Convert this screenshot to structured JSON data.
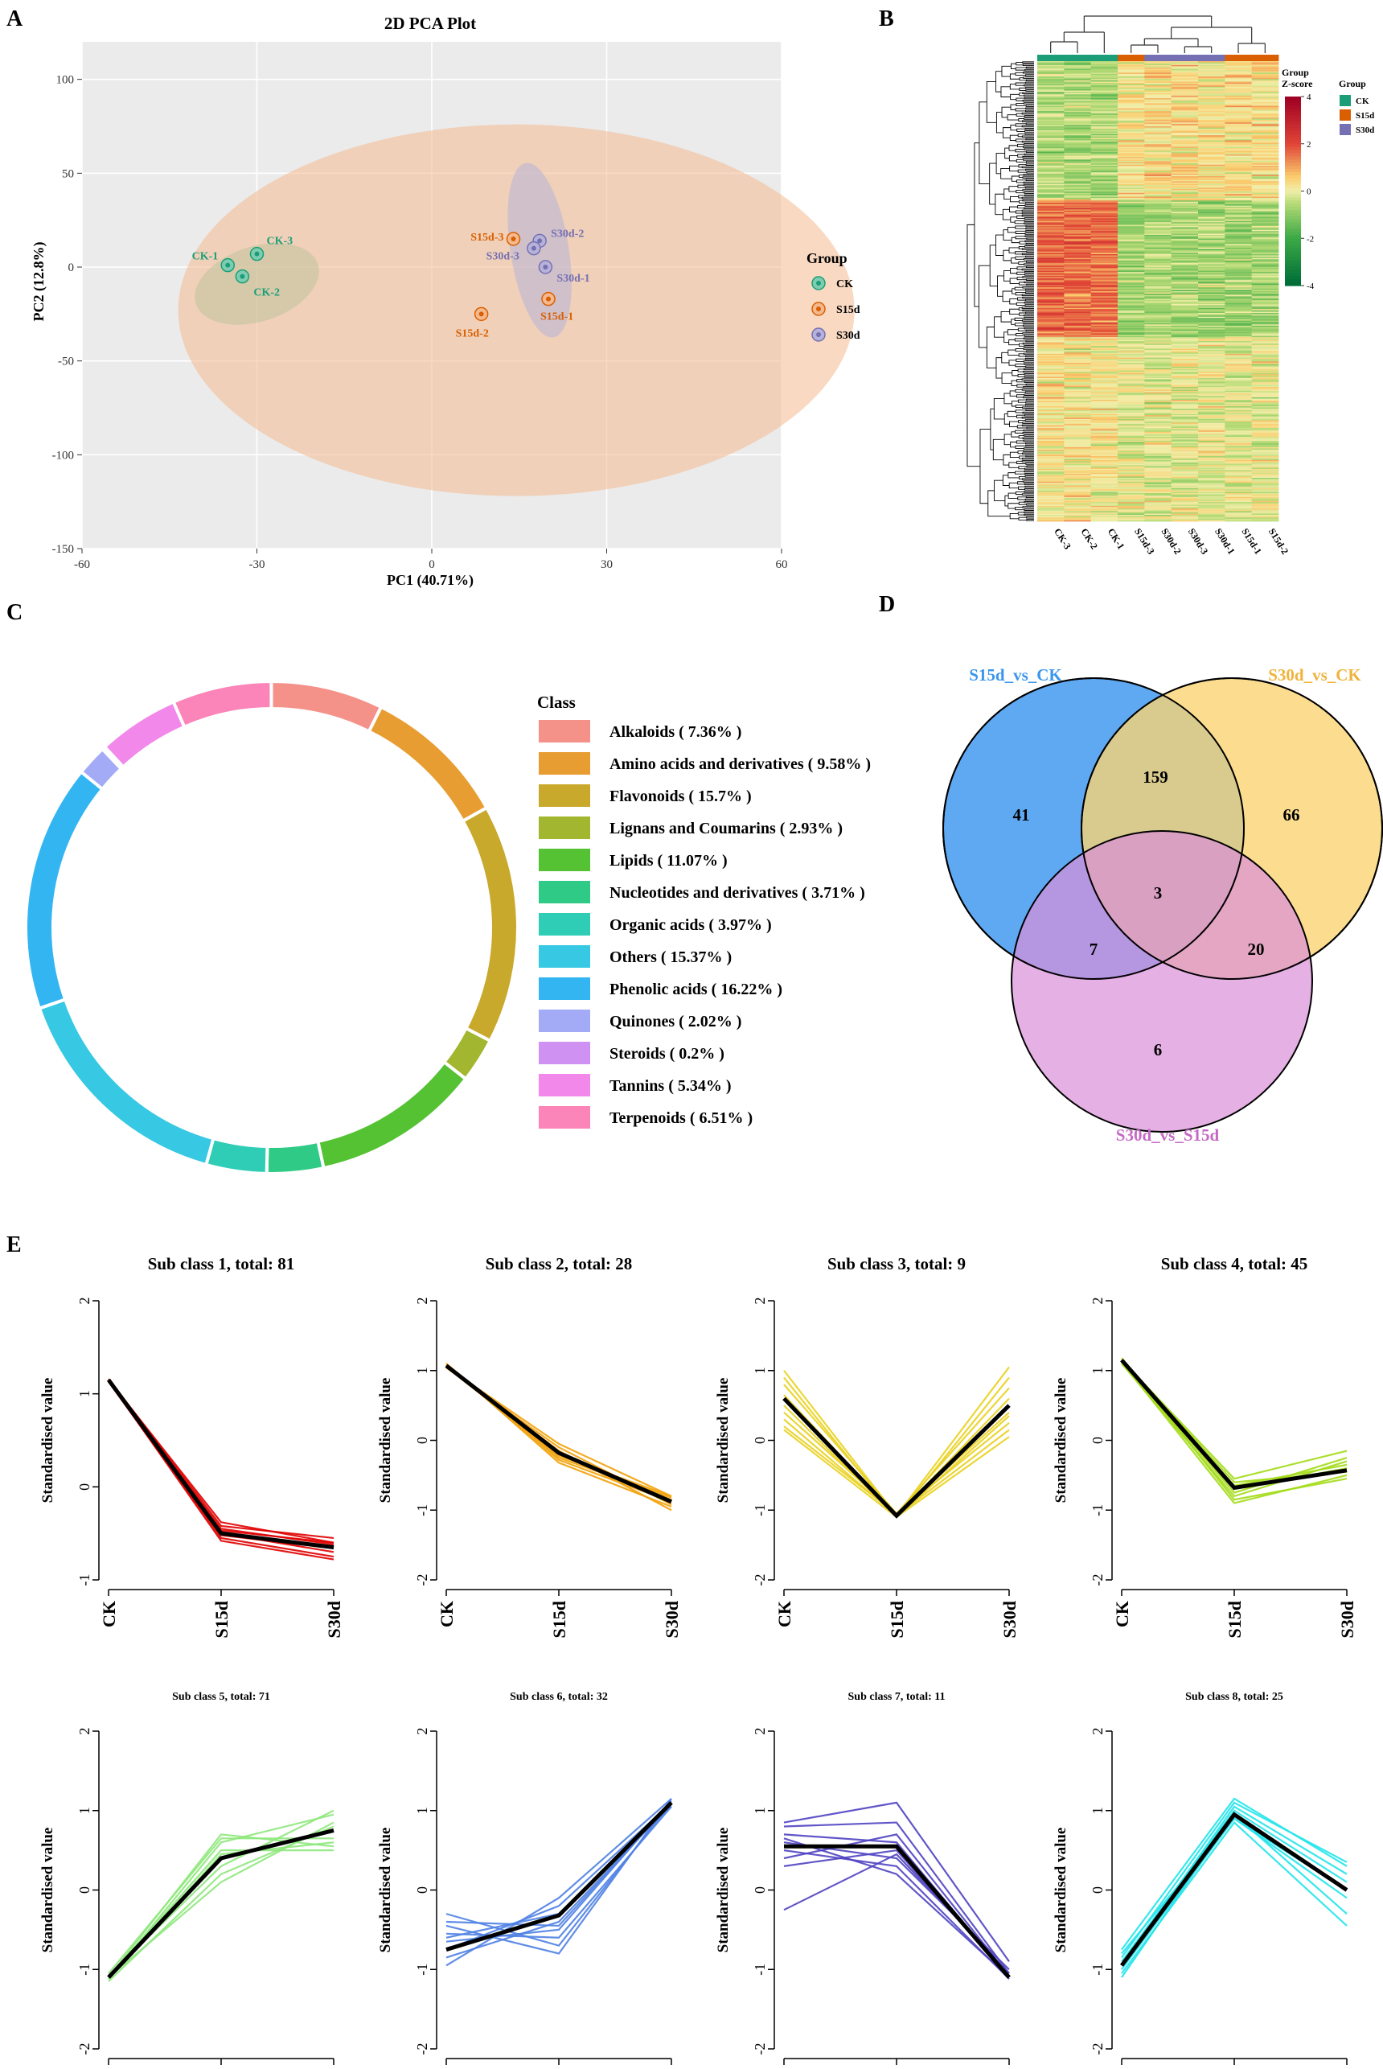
{
  "panel_labels": {
    "A": "A",
    "B": "B",
    "C": "C",
    "D": "D",
    "E": "E"
  },
  "chart_data": [
    {
      "panel": "A",
      "type": "scatter",
      "title": "2D PCA Plot",
      "xlabel": "PC1 (40.71%)",
      "ylabel": "PC2 (12.8%)",
      "xlim": [
        -60,
        60
      ],
      "ylim": [
        -150,
        120
      ],
      "xticks": [
        -60,
        -30,
        0,
        30,
        60
      ],
      "yticks": [
        -150,
        -100,
        -50,
        0,
        50,
        100
      ],
      "legend_title": "Group",
      "groups": [
        {
          "name": "CK",
          "color": "#1b9e77",
          "fill": "#7fcdb0",
          "ellipse": {
            "cx": -30,
            "cy": -9,
            "rx": 11,
            "ry": 20,
            "angle": -18
          },
          "points": [
            {
              "label": "CK-1",
              "x": -35,
              "y": 1
            },
            {
              "label": "CK-2",
              "x": -32.5,
              "y": -5
            },
            {
              "label": "CK-3",
              "x": -30,
              "y": 7
            }
          ]
        },
        {
          "name": "S15d",
          "color": "#d95f02",
          "fill": "#f4b98e",
          "ellipse": {
            "cx": 14.5,
            "cy": -23,
            "rx": 58,
            "ry": 99,
            "angle": 0
          },
          "points": [
            {
              "label": "S15d-1",
              "x": 20,
              "y": -17
            },
            {
              "label": "S15d-2",
              "x": 8.5,
              "y": -25
            },
            {
              "label": "S15d-3",
              "x": 14,
              "y": 15
            }
          ]
        },
        {
          "name": "S30d",
          "color": "#7570b3",
          "fill": "#b7b3d8",
          "ellipse": {
            "cx": 18.5,
            "cy": 9,
            "rx": 5,
            "ry": 47,
            "angle": -9
          },
          "points": [
            {
              "label": "S30d-1",
              "x": 19.5,
              "y": 0
            },
            {
              "label": "S30d-2",
              "x": 18.5,
              "y": 14
            },
            {
              "label": "S30d-3",
              "x": 17.5,
              "y": 10
            }
          ]
        }
      ]
    },
    {
      "panel": "B",
      "type": "heatmap",
      "columns": [
        "CK-3",
        "CK-2",
        "CK-1",
        "S15d-3",
        "S30d-2",
        "S30d-3",
        "S30d-1",
        "S15d-1",
        "S15d-2"
      ],
      "column_groups": [
        "CK",
        "CK",
        "CK",
        "S15d",
        "S30d",
        "S30d",
        "S30d",
        "S15d",
        "S15d"
      ],
      "row_count": 360,
      "zlim": [
        -4,
        4
      ],
      "colorbar_ticks": [
        "4",
        "2",
        "0",
        "-2",
        "-4"
      ],
      "colorbar_title_1": "Group",
      "colorbar_title_2": "Z-score",
      "legend_title": "Group",
      "groups": [
        {
          "name": "CK",
          "color": "#1b9e77"
        },
        {
          "name": "S15d",
          "color": "#d95f02"
        },
        {
          "name": "S30d",
          "color": "#7570b3"
        }
      ]
    },
    {
      "panel": "C",
      "type": "pie",
      "legend_title": "Class",
      "slices": [
        {
          "label": "Alkaloids ( 7.36% )",
          "value": 7.36,
          "color": "#f4928a"
        },
        {
          "label": "Amino acids and derivatives ( 9.58% )",
          "value": 9.58,
          "color": "#e89d32"
        },
        {
          "label": "Flavonoids ( 15.7% )",
          "value": 15.7,
          "color": "#c9a92c"
        },
        {
          "label": "Lignans and Coumarins ( 2.93% )",
          "value": 2.93,
          "color": "#a2b72f"
        },
        {
          "label": "Lipids ( 11.07% )",
          "value": 11.07,
          "color": "#55c234"
        },
        {
          "label": "Nucleotides and derivatives ( 3.71% )",
          "value": 3.71,
          "color": "#2fcb86"
        },
        {
          "label": "Organic acids ( 3.97% )",
          "value": 3.97,
          "color": "#2fcdb6"
        },
        {
          "label": "Others ( 15.37% )",
          "value": 15.37,
          "color": "#37c8e3"
        },
        {
          "label": "Phenolic acids ( 16.22% )",
          "value": 16.22,
          "color": "#33b5f2"
        },
        {
          "label": "Quinones ( 2.02% )",
          "value": 2.02,
          "color": "#a3abf7"
        },
        {
          "label": "Steroids ( 0.2% )",
          "value": 0.2,
          "color": "#cf92f2"
        },
        {
          "label": "Tannins ( 5.34% )",
          "value": 5.34,
          "color": "#f289ea"
        },
        {
          "label": "Terpenoids ( 6.51% )",
          "value": 6.51,
          "color": "#fb84b9"
        }
      ]
    },
    {
      "panel": "D",
      "type": "venn",
      "sets": [
        {
          "name": "S15d_vs_CK",
          "color": "#3a96ed",
          "fill": "#5fa9f3"
        },
        {
          "name": "S30d_vs_CK",
          "color": "#f0b33b",
          "fill": "#fbd371"
        },
        {
          "name": "S30d_vs_S15d",
          "color": "#c46ac4",
          "fill": "#da8fd9"
        }
      ],
      "regions": {
        "a_only": "41",
        "b_only": "66",
        "c_only": "6",
        "ab": "159",
        "ac": "7",
        "bc": "20",
        "abc": "3"
      }
    },
    {
      "panel": "E",
      "type": "line",
      "ylabel": "Standardised value",
      "categories": [
        "CK",
        "S15d",
        "S30d"
      ],
      "subplots": [
        {
          "title": "Sub class 1, total: 81",
          "color": "#e00000",
          "ylim": [
            -1,
            2
          ],
          "yticks": [
            "2",
            "1",
            "0",
            "-1"
          ],
          "mean": [
            1.15,
            -0.5,
            -0.65
          ],
          "lines": [
            [
              1.15,
              -0.38,
              -0.6
            ],
            [
              1.13,
              -0.55,
              -0.75
            ],
            [
              1.15,
              -0.45,
              -0.62
            ],
            [
              1.14,
              -0.5,
              -0.7
            ],
            [
              1.16,
              -0.42,
              -0.55
            ],
            [
              1.14,
              -0.58,
              -0.78
            ],
            [
              1.15,
              -0.52,
              -0.66
            ],
            [
              1.15,
              -0.47,
              -0.6
            ]
          ]
        },
        {
          "title": "Sub class 2, total: 28",
          "color": "#f2a20a",
          "ylim": [
            -2,
            2
          ],
          "yticks": [
            "2",
            "1",
            "0",
            "-1",
            "-2"
          ],
          "mean": [
            1.07,
            -0.18,
            -0.88
          ],
          "lines": [
            [
              1.05,
              -0.05,
              -0.8
            ],
            [
              1.1,
              -0.32,
              -0.95
            ],
            [
              1.08,
              -0.2,
              -0.85
            ],
            [
              1.04,
              -0.1,
              -0.92
            ],
            [
              1.1,
              -0.25,
              -0.82
            ],
            [
              1.06,
              -0.15,
              -1.0
            ],
            [
              1.08,
              -0.28,
              -0.88
            ],
            [
              1.05,
              -0.22,
              -0.8
            ]
          ]
        },
        {
          "title": "Sub class 3, total: 9",
          "color": "#e9d120",
          "ylim": [
            -2,
            2
          ],
          "yticks": [
            "2",
            "1",
            "0",
            "-1",
            "-2"
          ],
          "mean": [
            0.6,
            -1.08,
            0.5
          ],
          "lines": [
            [
              1.0,
              -1.08,
              1.05
            ],
            [
              0.9,
              -1.1,
              0.9
            ],
            [
              0.8,
              -1.05,
              0.75
            ],
            [
              0.65,
              -1.08,
              0.6
            ],
            [
              0.5,
              -1.1,
              0.35
            ],
            [
              0.4,
              -1.05,
              0.25
            ],
            [
              0.3,
              -1.08,
              0.15
            ],
            [
              0.15,
              -1.1,
              0.05
            ],
            [
              0.2,
              -1.06,
              0.4
            ]
          ]
        },
        {
          "title": "Sub class 4, total: 45",
          "color": "#a3dc17",
          "ylim": [
            -2,
            2
          ],
          "yticks": [
            "2",
            "1",
            "0",
            "-1",
            "-2"
          ],
          "mean": [
            1.15,
            -0.68,
            -0.43
          ],
          "lines": [
            [
              1.15,
              -0.55,
              -0.15
            ],
            [
              1.12,
              -0.9,
              -0.5
            ],
            [
              1.16,
              -0.7,
              -0.4
            ],
            [
              1.1,
              -0.8,
              -0.3
            ],
            [
              1.14,
              -0.6,
              -0.45
            ],
            [
              1.18,
              -0.85,
              -0.55
            ],
            [
              1.13,
              -0.75,
              -0.25
            ],
            [
              1.15,
              -0.65,
              -0.35
            ]
          ]
        },
        {
          "title": "Sub class 5, total: 71",
          "color": "#8ee87c",
          "ylim": [
            -2,
            2
          ],
          "yticks": [
            "2",
            "1",
            "0",
            "-1",
            "-2"
          ],
          "mean": [
            -1.1,
            0.4,
            0.75
          ],
          "lines": [
            [
              -1.1,
              0.7,
              0.55
            ],
            [
              -1.12,
              0.6,
              0.95
            ],
            [
              -1.08,
              0.3,
              1.0
            ],
            [
              -1.1,
              0.5,
              0.5
            ],
            [
              -1.15,
              0.2,
              0.8
            ],
            [
              -1.05,
              0.65,
              0.65
            ],
            [
              -1.1,
              0.1,
              0.85
            ],
            [
              -1.12,
              0.45,
              0.6
            ]
          ]
        },
        {
          "title": "Sub class 6, total: 32",
          "color": "#4f81e3",
          "ylim": [
            -2,
            2
          ],
          "yticks": [
            "2",
            "1",
            "0",
            "-1",
            "-2"
          ],
          "mean": [
            -0.75,
            -0.32,
            1.1
          ],
          "lines": [
            [
              -0.3,
              -0.7,
              1.1
            ],
            [
              -0.45,
              -0.8,
              1.15
            ],
            [
              -0.55,
              -0.6,
              1.05
            ],
            [
              -0.65,
              -0.5,
              1.12
            ],
            [
              -0.75,
              -0.2,
              1.1
            ],
            [
              -0.85,
              -0.4,
              1.08
            ],
            [
              -0.95,
              -0.1,
              1.15
            ],
            [
              -0.6,
              -0.3,
              1.05
            ],
            [
              -0.4,
              -0.45,
              1.1
            ]
          ]
        },
        {
          "title": "Sub class 7, total: 11",
          "color": "#5044c2",
          "ylim": [
            -2,
            2
          ],
          "yticks": [
            "2",
            "1",
            "0",
            "-1",
            "-2"
          ],
          "mean": [
            0.55,
            0.55,
            -1.1
          ],
          "lines": [
            [
              0.85,
              1.1,
              -0.9
            ],
            [
              0.8,
              0.85,
              -1.05
            ],
            [
              0.7,
              0.6,
              -1.1
            ],
            [
              0.6,
              0.4,
              -1.0
            ],
            [
              0.5,
              0.3,
              -1.12
            ],
            [
              0.4,
              0.7,
              -1.08
            ],
            [
              0.3,
              0.5,
              -1.1
            ],
            [
              -0.25,
              0.45,
              -1.05
            ],
            [
              0.65,
              0.2,
              -1.1
            ]
          ]
        },
        {
          "title": "Sub class 8, total: 25",
          "color": "#22e4ea",
          "ylim": [
            -2,
            2
          ],
          "yticks": [
            "2",
            "1",
            "0",
            "-1",
            "-2"
          ],
          "mean": [
            -0.95,
            0.95,
            0.0
          ],
          "lines": [
            [
              -0.75,
              1.15,
              0.3
            ],
            [
              -0.85,
              1.1,
              0.35
            ],
            [
              -0.9,
              1.0,
              0.1
            ],
            [
              -1.0,
              0.9,
              -0.1
            ],
            [
              -1.05,
              0.85,
              -0.45
            ],
            [
              -0.95,
              1.05,
              0.2
            ],
            [
              -1.1,
              0.95,
              -0.3
            ],
            [
              -0.8,
              0.9,
              0.0
            ]
          ]
        }
      ]
    }
  ]
}
